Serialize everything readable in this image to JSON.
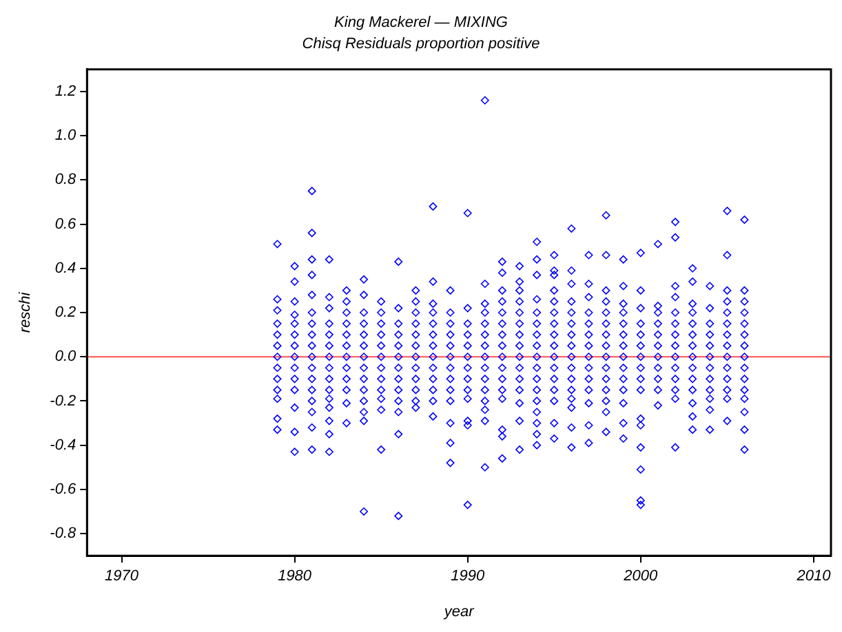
{
  "chart_data": {
    "type": "scatter",
    "title": "King Mackerel — MIXING",
    "subtitle": "Chisq Residuals proportion positive",
    "xlabel": "year",
    "ylabel": "reschi",
    "xlim": [
      1968,
      2011
    ],
    "xticks": [
      1970,
      1980,
      1990,
      2000,
      2010
    ],
    "ylim": [
      -0.9,
      1.3
    ],
    "yticks": [
      -0.8,
      -0.6,
      -0.4,
      -0.2,
      {
        "value": 0,
        "label": "0.0"
      },
      0.2,
      0.4,
      0.6,
      0.8,
      {
        "value": 1,
        "label": "1.0"
      },
      1.2
    ],
    "grid": false,
    "legend": false,
    "marker": "diamond",
    "ref_lines": [
      {
        "axis": "y",
        "value": 0,
        "color": "#ff7070"
      }
    ],
    "series": [
      {
        "color": "#0000ff",
        "x": [
          1979,
          1979,
          1979,
          1979,
          1979,
          1979,
          1979,
          1979,
          1979,
          1979,
          1979,
          1979,
          1979
        ],
        "values": [
          0.51,
          0.26,
          0.21,
          0.15,
          0.1,
          0.05,
          0,
          -0.05,
          -0.1,
          -0.15,
          -0.19,
          -0.28,
          -0.33
        ]
      },
      {
        "color": "#0000ff",
        "x": [
          1980,
          1980,
          1980,
          1980,
          1980,
          1980,
          1980,
          1980,
          1980,
          1980,
          1980,
          1980,
          1980,
          1980
        ],
        "values": [
          0.41,
          0.34,
          0.25,
          0.19,
          0.15,
          0.1,
          0.05,
          0,
          -0.05,
          -0.1,
          -0.15,
          -0.23,
          -0.34,
          -0.43
        ]
      },
      {
        "color": "#0000ff",
        "x": [
          1981,
          1981,
          1981,
          1981,
          1981,
          1981,
          1981,
          1981,
          1981,
          1981,
          1981,
          1981,
          1981,
          1981,
          1981,
          1981,
          1981
        ],
        "values": [
          0.75,
          0.56,
          0.44,
          0.37,
          0.28,
          0.2,
          0.15,
          0.1,
          0.05,
          0,
          -0.05,
          -0.1,
          -0.15,
          -0.2,
          -0.25,
          -0.32,
          -0.42
        ]
      },
      {
        "color": "#0000ff",
        "x": [
          1982,
          1982,
          1982,
          1982,
          1982,
          1982,
          1982,
          1982,
          1982,
          1982,
          1982,
          1982,
          1982,
          1982,
          1982
        ],
        "values": [
          0.44,
          0.27,
          0.22,
          0.15,
          0.1,
          0.05,
          0,
          -0.05,
          -0.1,
          -0.15,
          -0.19,
          -0.23,
          -0.29,
          -0.35,
          -0.43
        ]
      },
      {
        "color": "#0000ff",
        "x": [
          1983,
          1983,
          1983,
          1983,
          1983,
          1983,
          1983,
          1983,
          1983,
          1983,
          1983,
          1983
        ],
        "values": [
          0.3,
          0.25,
          0.2,
          0.15,
          0.1,
          0.05,
          0,
          -0.05,
          -0.1,
          -0.15,
          -0.21,
          -0.3
        ]
      },
      {
        "color": "#0000ff",
        "x": [
          1984,
          1984,
          1984,
          1984,
          1984,
          1984,
          1984,
          1984,
          1984,
          1984,
          1984,
          1984,
          1984,
          1984
        ],
        "values": [
          0.35,
          0.28,
          0.2,
          0.15,
          0.1,
          0.05,
          0,
          -0.05,
          -0.1,
          -0.15,
          -0.2,
          -0.25,
          -0.29,
          -0.7
        ]
      },
      {
        "color": "#0000ff",
        "x": [
          1985,
          1985,
          1985,
          1985,
          1985,
          1985,
          1985,
          1985,
          1985,
          1985,
          1985,
          1985
        ],
        "values": [
          0.25,
          0.2,
          0.15,
          0.1,
          0.05,
          0,
          -0.05,
          -0.1,
          -0.15,
          -0.19,
          -0.24,
          -0.42
        ]
      },
      {
        "color": "#0000ff",
        "x": [
          1986,
          1986,
          1986,
          1986,
          1986,
          1986,
          1986,
          1986,
          1986,
          1986,
          1986,
          1986,
          1986
        ],
        "values": [
          0.43,
          0.22,
          0.15,
          0.1,
          0.05,
          0,
          -0.05,
          -0.1,
          -0.15,
          -0.2,
          -0.25,
          -0.35,
          -0.72
        ]
      },
      {
        "color": "#0000ff",
        "x": [
          1987,
          1987,
          1987,
          1987,
          1987,
          1987,
          1987,
          1987,
          1987,
          1987,
          1987,
          1987
        ],
        "values": [
          0.3,
          0.25,
          0.2,
          0.15,
          0.1,
          0.05,
          0,
          -0.05,
          -0.1,
          -0.15,
          -0.2,
          -0.23
        ]
      },
      {
        "color": "#0000ff",
        "x": [
          1988,
          1988,
          1988,
          1988,
          1988,
          1988,
          1988,
          1988,
          1988,
          1988,
          1988,
          1988,
          1988
        ],
        "values": [
          0.68,
          0.34,
          0.24,
          0.2,
          0.15,
          0.1,
          0.05,
          0,
          -0.05,
          -0.1,
          -0.15,
          -0.2,
          -0.27
        ]
      },
      {
        "color": "#0000ff",
        "x": [
          1989,
          1989,
          1989,
          1989,
          1989,
          1989,
          1989,
          1989,
          1989,
          1989,
          1989,
          1989,
          1989
        ],
        "values": [
          0.3,
          0.2,
          0.15,
          0.1,
          0.05,
          0,
          -0.05,
          -0.1,
          -0.15,
          -0.2,
          -0.3,
          -0.39,
          -0.48
        ]
      },
      {
        "color": "#0000ff",
        "x": [
          1990,
          1990,
          1990,
          1990,
          1990,
          1990,
          1990,
          1990,
          1990,
          1990,
          1990,
          1990,
          1990
        ],
        "values": [
          0.65,
          0.22,
          0.15,
          0.1,
          0.05,
          0,
          -0.05,
          -0.1,
          -0.15,
          -0.19,
          -0.29,
          -0.31,
          -0.67
        ]
      },
      {
        "color": "#0000ff",
        "x": [
          1991,
          1991,
          1991,
          1991,
          1991,
          1991,
          1991,
          1991,
          1991,
          1991,
          1991,
          1991,
          1991,
          1991,
          1991
        ],
        "values": [
          1.16,
          0.33,
          0.24,
          0.2,
          0.15,
          0.1,
          0.05,
          0,
          -0.05,
          -0.1,
          -0.15,
          -0.2,
          -0.24,
          -0.29,
          -0.5
        ]
      },
      {
        "color": "#0000ff",
        "x": [
          1992,
          1992,
          1992,
          1992,
          1992,
          1992,
          1992,
          1992,
          1992,
          1992,
          1992,
          1992,
          1992,
          1992,
          1992,
          1992
        ],
        "values": [
          0.43,
          0.38,
          0.3,
          0.25,
          0.2,
          0.15,
          0.1,
          0.05,
          0,
          -0.05,
          -0.1,
          -0.15,
          -0.19,
          -0.33,
          -0.36,
          -0.46
        ]
      },
      {
        "color": "#0000ff",
        "x": [
          1993,
          1993,
          1993,
          1993,
          1993,
          1993,
          1993,
          1993,
          1993,
          1993,
          1993,
          1993,
          1993,
          1993,
          1993
        ],
        "values": [
          0.41,
          0.34,
          0.3,
          0.25,
          0.2,
          0.15,
          0.1,
          0.05,
          0,
          -0.05,
          -0.1,
          -0.15,
          -0.21,
          -0.29,
          -0.42
        ]
      },
      {
        "color": "#0000ff",
        "x": [
          1994,
          1994,
          1994,
          1994,
          1994,
          1994,
          1994,
          1994,
          1994,
          1994,
          1994,
          1994,
          1994,
          1994,
          1994,
          1994,
          1994
        ],
        "values": [
          0.52,
          0.44,
          0.37,
          0.26,
          0.2,
          0.15,
          0.1,
          0.05,
          0,
          -0.05,
          -0.1,
          -0.15,
          -0.2,
          -0.25,
          -0.3,
          -0.35,
          -0.4
        ]
      },
      {
        "color": "#0000ff",
        "x": [
          1995,
          1995,
          1995,
          1995,
          1995,
          1995,
          1995,
          1995,
          1995,
          1995,
          1995,
          1995,
          1995,
          1995,
          1995,
          1995
        ],
        "values": [
          0.46,
          0.39,
          0.37,
          0.3,
          0.25,
          0.2,
          0.15,
          0.1,
          0.05,
          0,
          -0.05,
          -0.1,
          -0.15,
          -0.2,
          -0.3,
          -0.37
        ]
      },
      {
        "color": "#0000ff",
        "x": [
          1996,
          1996,
          1996,
          1996,
          1996,
          1996,
          1996,
          1996,
          1996,
          1996,
          1996,
          1996,
          1996,
          1996,
          1996,
          1996
        ],
        "values": [
          0.58,
          0.39,
          0.33,
          0.25,
          0.2,
          0.15,
          0.1,
          0.05,
          0,
          -0.05,
          -0.1,
          -0.15,
          -0.19,
          -0.23,
          -0.32,
          -0.41
        ]
      },
      {
        "color": "#0000ff",
        "x": [
          1997,
          1997,
          1997,
          1997,
          1997,
          1997,
          1997,
          1997,
          1997,
          1997,
          1997,
          1997,
          1997,
          1997
        ],
        "values": [
          0.46,
          0.33,
          0.27,
          0.2,
          0.15,
          0.1,
          0.05,
          0,
          -0.05,
          -0.1,
          -0.15,
          -0.21,
          -0.31,
          -0.39
        ]
      },
      {
        "color": "#0000ff",
        "x": [
          1998,
          1998,
          1998,
          1998,
          1998,
          1998,
          1998,
          1998,
          1998,
          1998,
          1998,
          1998,
          1998,
          1998,
          1998
        ],
        "values": [
          0.64,
          0.46,
          0.3,
          0.25,
          0.2,
          0.15,
          0.1,
          0.05,
          0,
          -0.05,
          -0.1,
          -0.15,
          -0.2,
          -0.25,
          -0.34
        ]
      },
      {
        "color": "#0000ff",
        "x": [
          1999,
          1999,
          1999,
          1999,
          1999,
          1999,
          1999,
          1999,
          1999,
          1999,
          1999,
          1999,
          1999,
          1999
        ],
        "values": [
          0.44,
          0.32,
          0.24,
          0.2,
          0.15,
          0.1,
          0.05,
          0,
          -0.05,
          -0.1,
          -0.15,
          -0.21,
          -0.3,
          -0.37
        ]
      },
      {
        "color": "#0000ff",
        "x": [
          2000,
          2000,
          2000,
          2000,
          2000,
          2000,
          2000,
          2000,
          2000,
          2000,
          2000,
          2000,
          2000,
          2000,
          2000,
          2000
        ],
        "values": [
          0.47,
          0.3,
          0.22,
          0.15,
          0.1,
          0.05,
          0,
          -0.05,
          -0.1,
          -0.15,
          -0.28,
          -0.31,
          -0.41,
          -0.51,
          -0.65,
          -0.67
        ]
      },
      {
        "color": "#0000ff",
        "x": [
          2001,
          2001,
          2001,
          2001,
          2001,
          2001,
          2001,
          2001,
          2001,
          2001,
          2001
        ],
        "values": [
          0.51,
          0.23,
          0.2,
          0.15,
          0.1,
          0.05,
          0,
          -0.05,
          -0.1,
          -0.15,
          -0.22
        ]
      },
      {
        "color": "#0000ff",
        "x": [
          2002,
          2002,
          2002,
          2002,
          2002,
          2002,
          2002,
          2002,
          2002,
          2002,
          2002,
          2002,
          2002,
          2002
        ],
        "values": [
          0.61,
          0.54,
          0.32,
          0.27,
          0.2,
          0.15,
          0.1,
          0.05,
          0,
          -0.05,
          -0.1,
          -0.15,
          -0.19,
          -0.41
        ]
      },
      {
        "color": "#0000ff",
        "x": [
          2003,
          2003,
          2003,
          2003,
          2003,
          2003,
          2003,
          2003,
          2003,
          2003,
          2003,
          2003,
          2003,
          2003
        ],
        "values": [
          0.4,
          0.34,
          0.24,
          0.2,
          0.15,
          0.1,
          0.05,
          0,
          -0.05,
          -0.1,
          -0.15,
          -0.21,
          -0.27,
          -0.33
        ]
      },
      {
        "color": "#0000ff",
        "x": [
          2004,
          2004,
          2004,
          2004,
          2004,
          2004,
          2004,
          2004,
          2004,
          2004,
          2004,
          2004
        ],
        "values": [
          0.32,
          0.22,
          0.15,
          0.1,
          0.05,
          0,
          -0.05,
          -0.1,
          -0.15,
          -0.19,
          -0.24,
          -0.33
        ]
      },
      {
        "color": "#0000ff",
        "x": [
          2005,
          2005,
          2005,
          2005,
          2005,
          2005,
          2005,
          2005,
          2005,
          2005,
          2005,
          2005,
          2005,
          2005
        ],
        "values": [
          0.66,
          0.46,
          0.3,
          0.25,
          0.2,
          0.15,
          0.1,
          0.05,
          0,
          -0.05,
          -0.1,
          -0.15,
          -0.19,
          -0.29
        ]
      },
      {
        "color": "#0000ff",
        "x": [
          2006,
          2006,
          2006,
          2006,
          2006,
          2006,
          2006,
          2006,
          2006,
          2006,
          2006,
          2006,
          2006,
          2006,
          2006
        ],
        "values": [
          0.62,
          0.3,
          0.25,
          0.2,
          0.15,
          0.1,
          0.05,
          0,
          -0.05,
          -0.1,
          -0.15,
          -0.19,
          -0.25,
          -0.33,
          -0.42
        ]
      }
    ]
  }
}
